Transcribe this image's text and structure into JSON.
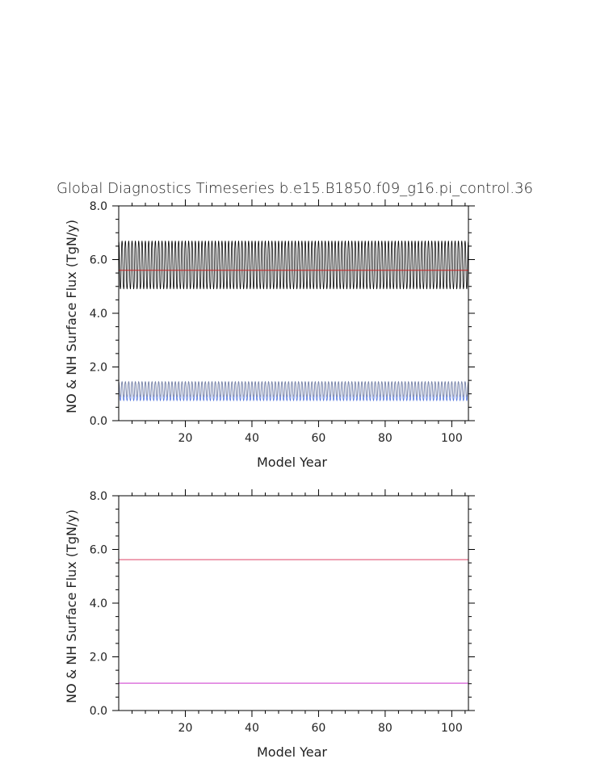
{
  "title": "Global Diagnostics Timeseries b.e15.B1850.f09_g16.pi_control.36",
  "chart_data": [
    {
      "type": "line",
      "xlabel": "Model Year",
      "ylabel": "NO & NH Surface Flux (TgN/y)",
      "xlim": [
        0,
        105
      ],
      "ylim": [
        0.0,
        8.0
      ],
      "xticks": [
        "20",
        "40",
        "60",
        "80",
        "100"
      ],
      "yticks": [
        "0.0",
        "2.0",
        "4.0",
        "6.0",
        "8.0"
      ],
      "grid": false,
      "series": [
        {
          "color": "#000000",
          "kind": "seasonal-monthly",
          "min": 4.9,
          "max": 6.7,
          "mean": 5.6,
          "period_years": 1
        },
        {
          "color": "#cc2222",
          "kind": "annual-mean",
          "value": 5.6
        },
        {
          "color": "#5577dd",
          "kind": "seasonal-monthly",
          "min": 0.75,
          "max": 1.45,
          "mean": 1.02,
          "period_years": 1
        },
        {
          "color": "#888888",
          "kind": "seasonal-monthly",
          "min": 0.9,
          "max": 1.45,
          "mean": 1.1,
          "period_years": 1
        }
      ]
    },
    {
      "type": "line",
      "xlabel": "Model Year",
      "ylabel": "NO & NH Surface Flux (TgN/y)",
      "xlim": [
        0,
        105
      ],
      "ylim": [
        0.0,
        8.0
      ],
      "xticks": [
        "20",
        "40",
        "60",
        "80",
        "100"
      ],
      "yticks": [
        "0.0",
        "2.0",
        "4.0",
        "6.0",
        "8.0"
      ],
      "grid": false,
      "series": [
        {
          "color": "#dd4466",
          "kind": "annual-mean",
          "value": 5.62
        },
        {
          "color": "#cc33cc",
          "kind": "annual-mean",
          "value": 1.02
        }
      ]
    }
  ]
}
